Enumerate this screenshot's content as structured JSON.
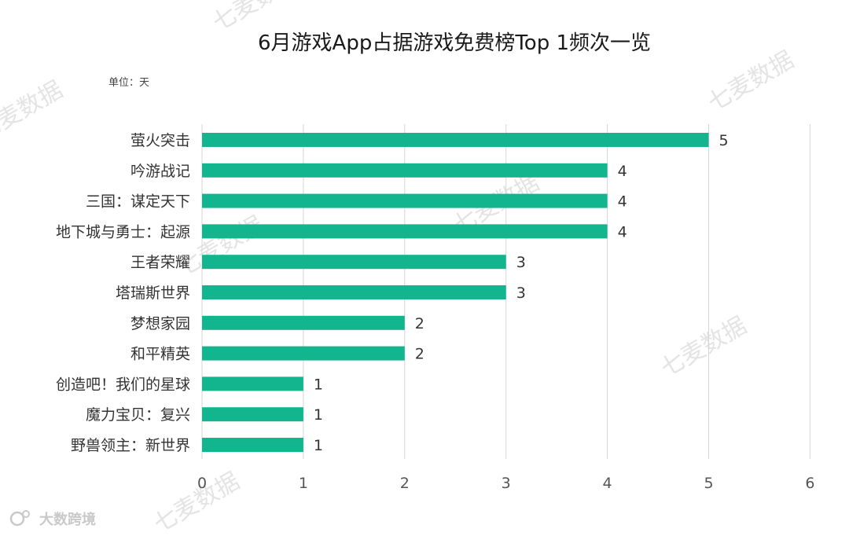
{
  "chart_data": {
    "type": "bar",
    "orientation": "horizontal",
    "title": "6月游戏App占据游戏免费榜Top 1频次一览",
    "unit_label": "单位：天",
    "categories": [
      "萤火突击",
      "吟游战记",
      "三国：谋定天下",
      "地下城与勇士：起源",
      "王者荣耀",
      "塔瑞斯世界",
      "梦想家园",
      "和平精英",
      "创造吧！我们的星球",
      "魔力宝贝：复兴",
      "野兽领主：新世界"
    ],
    "values": [
      5,
      4,
      4,
      4,
      3,
      3,
      2,
      2,
      1,
      1,
      1
    ],
    "xlim": [
      0,
      6
    ],
    "xticks": [
      0,
      1,
      2,
      3,
      4,
      5,
      6
    ],
    "grid": "vertical",
    "bar_color": "#13b58f"
  },
  "watermarks": [
    "七麦数据",
    "七麦数据",
    "七麦数据",
    "七麦数据",
    "七麦数据",
    "七麦数据",
    "七麦数据"
  ],
  "brand": "大数跨境"
}
